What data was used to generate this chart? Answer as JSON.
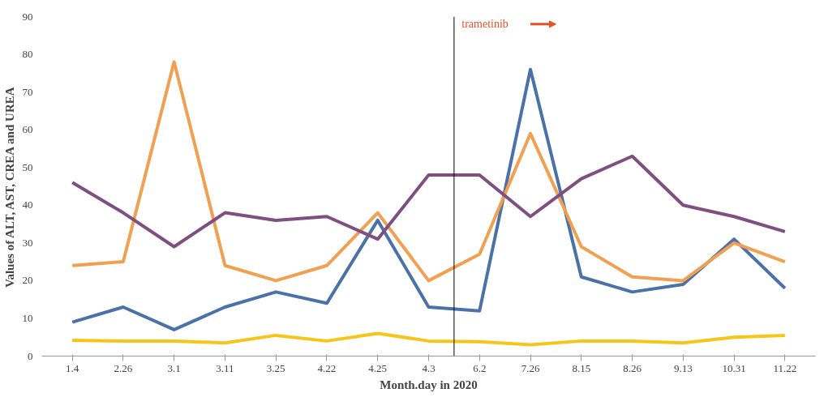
{
  "chart_data": {
    "type": "line",
    "xlabel": "Month.day in 2020",
    "ylabel": "Values of ALT, AST, CREA and UREA",
    "categories": [
      "1.4",
      "2.26",
      "3.1",
      "3.11",
      "3.25",
      "4.22",
      "4.25",
      "4.3",
      "6.2",
      "7.26",
      "8.15",
      "8.26",
      "9.13",
      "10.31",
      "11.22"
    ],
    "series": [
      {
        "color": "#4a72a8",
        "values": [
          9,
          13,
          7,
          13,
          17,
          14,
          36,
          13,
          12,
          76,
          21,
          17,
          19,
          31,
          18
        ]
      },
      {
        "color": "#f0a050",
        "values": [
          24,
          25,
          78,
          24,
          20,
          24,
          38,
          20,
          27,
          59,
          29,
          21,
          20,
          30,
          25
        ]
      },
      {
        "color": "#7e4f80",
        "values": [
          46,
          38,
          29,
          38,
          36,
          37,
          31,
          48,
          48,
          37,
          47,
          53,
          40,
          37,
          33
        ]
      },
      {
        "color": "#f7c41a",
        "values": [
          4.2,
          4,
          4,
          3.5,
          5.5,
          4,
          6,
          4,
          3.8,
          3,
          4,
          4,
          3.5,
          5,
          5.5
        ]
      }
    ],
    "ylim": [
      0,
      90
    ],
    "yticks": [
      0,
      10,
      20,
      30,
      40,
      50,
      60,
      70,
      80,
      90
    ],
    "grid": false,
    "marker": "none",
    "line_style": "solid",
    "annotations": [
      "trametinib"
    ]
  }
}
